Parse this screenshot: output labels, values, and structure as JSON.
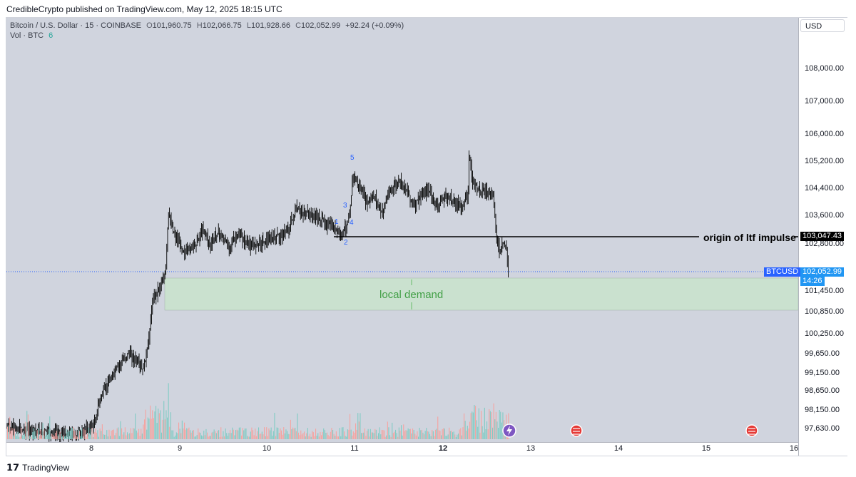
{
  "header": {
    "text": "CredibleCrypto published on TradingView.com, May 12, 2025 18:15 UTC"
  },
  "legend": {
    "symbol": "Bitcoin / U.S. Dollar · 15 · COINBASE",
    "o_label": "O",
    "o_value": "101,960.75",
    "h_label": "H",
    "h_value": "102,066.75",
    "l_label": "L",
    "l_value": "101,928.66",
    "c_label": "C",
    "c_value": "102,052.99",
    "change": "+92.24 (+0.09%)",
    "vol_label": "Vol · BTC",
    "vol_value": "6"
  },
  "currency_button": "USD",
  "price_axis": [
    "108,000.00",
    "107,000.00",
    "106,000.00",
    "105,200.00",
    "104,400.00",
    "103,600.00",
    "102,800.00",
    "101,450.00",
    "100,850.00",
    "100,250.00",
    "99,650.00",
    "99,150.00",
    "98,650.00",
    "98,150.00",
    "97,630.00"
  ],
  "time_axis": [
    {
      "label": "8",
      "bold": false
    },
    {
      "label": "9",
      "bold": false
    },
    {
      "label": "10",
      "bold": false
    },
    {
      "label": "11",
      "bold": false
    },
    {
      "label": "12",
      "bold": true
    },
    {
      "label": "13",
      "bold": false
    },
    {
      "label": "14",
      "bold": false
    },
    {
      "label": "15",
      "bold": false
    },
    {
      "label": "16",
      "bold": false
    }
  ],
  "annotations": {
    "impulse_label": "origin of ltf impulse",
    "impulse_price": "103,047.43",
    "demand_label": "local demand",
    "wave_labels": [
      "1",
      "2",
      "3",
      "4",
      "5"
    ]
  },
  "last_price": {
    "symbol": "BTCUSD",
    "price": "102,052.99",
    "countdown": "14:26"
  },
  "footer": {
    "brand": "TradingView"
  },
  "colors": {
    "up": "#26a69a",
    "down": "#ef5350",
    "demand_zone": "#c8e6c9",
    "accent": "#2962ff",
    "candle": "#000000"
  }
}
